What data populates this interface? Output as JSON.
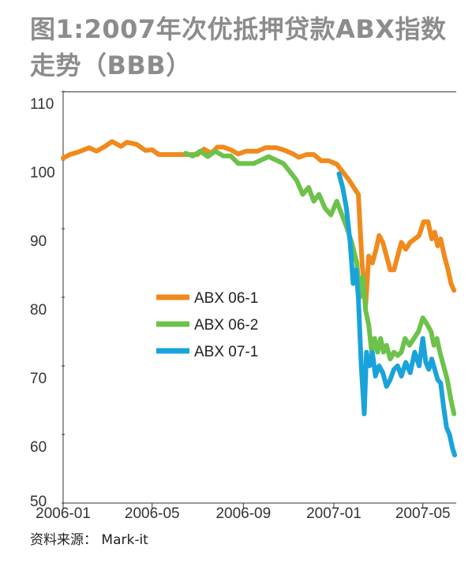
{
  "title": "图1:2007年次优抵押贷款ABX指数走势（BBB）",
  "source": "资料来源： Mark-it",
  "colors": {
    "ABX 06-1": "#f08a1c",
    "ABX 06-2": "#6cc24a",
    "ABX 07-1": "#1aa3db"
  },
  "chart_data": {
    "type": "line",
    "title": "",
    "xlabel": "",
    "ylabel": "",
    "ylim": [
      50,
      110
    ],
    "yticks": [
      50,
      60,
      70,
      80,
      90,
      100,
      110
    ],
    "xlim": [
      "2006-01-01",
      "2007-06-15"
    ],
    "xticks": [
      {
        "label": "2006-01",
        "date": "2006-01-01"
      },
      {
        "label": "2006-05",
        "date": "2006-05-01"
      },
      {
        "label": "2006-09",
        "date": "2006-09-01"
      },
      {
        "label": "2007-01",
        "date": "2007-01-01"
      },
      {
        "label": "2007-05",
        "date": "2007-05-01"
      }
    ],
    "grid": false,
    "legend_position": "center-left",
    "series": [
      {
        "name": "ABX 06-1",
        "x": [
          "2006-01-01",
          "2006-01-10",
          "2006-01-22",
          "2006-02-05",
          "2006-02-15",
          "2006-02-25",
          "2006-03-08",
          "2006-03-20",
          "2006-03-28",
          "2006-04-10",
          "2006-04-22",
          "2006-05-01",
          "2006-05-10",
          "2006-05-20",
          "2006-06-05",
          "2006-06-20",
          "2006-07-01",
          "2006-07-10",
          "2006-07-20",
          "2006-07-28",
          "2006-08-05",
          "2006-08-15",
          "2006-08-25",
          "2006-09-05",
          "2006-09-20",
          "2006-10-01",
          "2006-10-15",
          "2006-10-25",
          "2006-11-05",
          "2006-11-15",
          "2006-11-25",
          "2006-12-05",
          "2006-12-15",
          "2006-12-25",
          "2007-01-05",
          "2007-01-15",
          "2007-01-22",
          "2007-01-28",
          "2007-02-03",
          "2007-02-08",
          "2007-02-13",
          "2007-02-17",
          "2007-02-22",
          "2007-02-27",
          "2007-03-03",
          "2007-03-08",
          "2007-03-13",
          "2007-03-18",
          "2007-03-23",
          "2007-03-28",
          "2007-04-02",
          "2007-04-08",
          "2007-04-14",
          "2007-04-20",
          "2007-04-26",
          "2007-05-02",
          "2007-05-08",
          "2007-05-13",
          "2007-05-17",
          "2007-05-21",
          "2007-05-25",
          "2007-05-30",
          "2007-06-04",
          "2007-06-08",
          "2007-06-12"
        ],
        "values": [
          100.3,
          100.8,
          101.2,
          101.8,
          101.3,
          101.9,
          102.7,
          102.0,
          102.6,
          102.3,
          101.4,
          101.5,
          100.8,
          100.8,
          100.8,
          100.8,
          100.8,
          101.6,
          101.0,
          101.9,
          101.9,
          101.5,
          100.9,
          101.3,
          101.3,
          101.8,
          101.8,
          101.5,
          101.0,
          100.4,
          100.8,
          100.8,
          99.9,
          99.9,
          99.4,
          98.0,
          97.0,
          96.0,
          95.0,
          85.0,
          79.0,
          86.0,
          85.0,
          87.0,
          89.0,
          88.0,
          86.0,
          84.0,
          84.0,
          86.0,
          88.0,
          87.0,
          88.0,
          88.5,
          89.0,
          91.0,
          91.0,
          88.5,
          89.5,
          87.5,
          88.5,
          86.0,
          84.0,
          82.0,
          81.0
        ]
      },
      {
        "name": "ABX 06-2",
        "x": [
          "2006-06-15",
          "2006-06-25",
          "2006-07-05",
          "2006-07-15",
          "2006-07-25",
          "2006-08-05",
          "2006-08-15",
          "2006-08-25",
          "2006-09-05",
          "2006-09-15",
          "2006-09-25",
          "2006-10-05",
          "2006-10-15",
          "2006-10-25",
          "2006-11-05",
          "2006-11-12",
          "2006-11-20",
          "2006-11-28",
          "2006-12-05",
          "2006-12-12",
          "2006-12-20",
          "2006-12-28",
          "2007-01-05",
          "2007-01-12",
          "2007-01-19",
          "2007-01-25",
          "2007-02-01",
          "2007-02-05",
          "2007-02-09",
          "2007-02-13",
          "2007-02-17",
          "2007-02-21",
          "2007-02-25",
          "2007-03-01",
          "2007-03-05",
          "2007-03-09",
          "2007-03-13",
          "2007-03-18",
          "2007-03-23",
          "2007-03-28",
          "2007-04-02",
          "2007-04-07",
          "2007-04-13",
          "2007-04-19",
          "2007-04-25",
          "2007-05-01",
          "2007-05-07",
          "2007-05-12",
          "2007-05-16",
          "2007-05-20",
          "2007-05-24",
          "2007-05-29",
          "2007-06-03",
          "2007-06-08",
          "2007-06-12"
        ],
        "values": [
          101.0,
          100.6,
          101.3,
          100.5,
          101.3,
          100.6,
          100.6,
          99.5,
          99.5,
          99.5,
          100.0,
          100.5,
          100.0,
          99.5,
          98.0,
          97.0,
          95.0,
          96.0,
          94.0,
          95.0,
          93.0,
          92.0,
          94.0,
          92.0,
          90.0,
          88.0,
          85.0,
          80.0,
          83.0,
          78.0,
          76.0,
          72.0,
          74.0,
          72.0,
          74.0,
          72.0,
          73.0,
          71.0,
          72.0,
          71.5,
          72.0,
          74.0,
          73.0,
          74.0,
          75.0,
          77.0,
          76.0,
          75.0,
          73.0,
          74.0,
          72.0,
          70.0,
          68.0,
          65.0,
          63.0
        ]
      },
      {
        "name": "ABX 07-1",
        "x": [
          "2007-01-08",
          "2007-01-13",
          "2007-01-18",
          "2007-01-23",
          "2007-01-27",
          "2007-01-31",
          "2007-02-03",
          "2007-02-07",
          "2007-02-11",
          "2007-02-14",
          "2007-02-18",
          "2007-02-22",
          "2007-02-26",
          "2007-03-03",
          "2007-03-08",
          "2007-03-13",
          "2007-03-18",
          "2007-03-23",
          "2007-03-28",
          "2007-04-02",
          "2007-04-08",
          "2007-04-14",
          "2007-04-20",
          "2007-04-26",
          "2007-05-01",
          "2007-05-05",
          "2007-05-09",
          "2007-05-13",
          "2007-05-17",
          "2007-05-21",
          "2007-05-25",
          "2007-05-29",
          "2007-06-02",
          "2007-06-06",
          "2007-06-10",
          "2007-06-13"
        ],
        "values": [
          98.0,
          96.0,
          93.0,
          88.0,
          82.0,
          84.0,
          80.0,
          70.0,
          63.0,
          72.0,
          70.0,
          72.0,
          68.5,
          70.0,
          69.0,
          67.0,
          68.0,
          69.5,
          70.0,
          68.5,
          70.5,
          69.0,
          72.0,
          70.0,
          74.0,
          70.5,
          69.5,
          71.0,
          69.5,
          68.0,
          67.5,
          64.0,
          61.0,
          60.0,
          58.0,
          57.0
        ]
      }
    ]
  }
}
